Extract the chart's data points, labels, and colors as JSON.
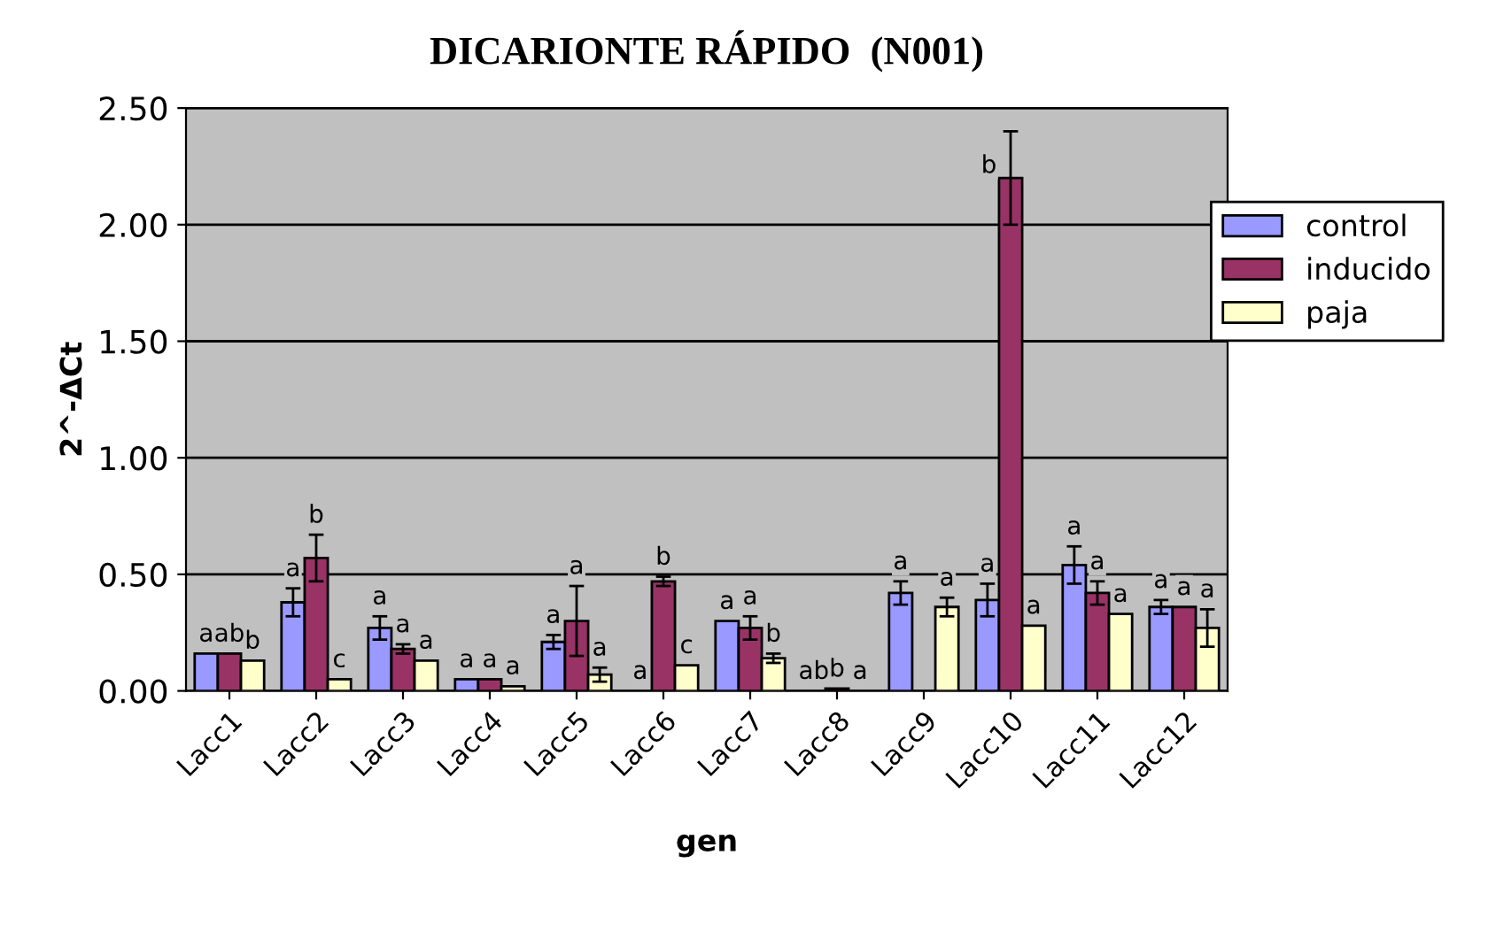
{
  "chart_data": {
    "type": "bar",
    "title": "DICARIONTE RÁPIDO  (N001)",
    "xlabel": "gen",
    "ylabel": "2^-ΔCt",
    "categories": [
      "Lacc1",
      "Lacc2",
      "Lacc3",
      "Lacc4",
      "Lacc5",
      "Lacc6",
      "Lacc7",
      "Lacc8",
      "Lacc9",
      "Lacc10",
      "Lacc11",
      "Lacc12"
    ],
    "series": [
      {
        "name": "control",
        "color": "#9999ff",
        "values": [
          0.16,
          0.38,
          0.27,
          0.05,
          0.21,
          null,
          0.3,
          null,
          0.42,
          0.39,
          0.54,
          0.36
        ],
        "errors": [
          null,
          0.06,
          0.05,
          null,
          0.03,
          null,
          null,
          null,
          0.05,
          0.07,
          0.08,
          0.03
        ],
        "value_labels": [
          "a",
          "a",
          "a",
          "a",
          "a",
          "a",
          "a",
          "ab",
          "a",
          "a",
          "a",
          "a"
        ]
      },
      {
        "name": "inducido",
        "color": "#993366",
        "values": [
          0.16,
          0.57,
          0.18,
          0.05,
          0.3,
          0.47,
          0.27,
          0.01,
          null,
          2.2,
          0.42,
          0.36
        ],
        "errors": [
          null,
          0.1,
          0.02,
          null,
          0.15,
          0.02,
          0.05,
          null,
          null,
          0.2,
          0.05,
          null
        ],
        "value_labels": [
          "ab",
          "b",
          "a",
          "a",
          "a",
          "b",
          "a",
          "b",
          null,
          "b",
          "a",
          "a"
        ]
      },
      {
        "name": "paja",
        "color": "#ffffcc",
        "values": [
          0.13,
          0.05,
          0.13,
          0.02,
          0.07,
          0.11,
          0.14,
          null,
          0.36,
          0.28,
          0.33,
          0.27
        ],
        "errors": [
          null,
          null,
          null,
          null,
          0.03,
          null,
          0.02,
          null,
          0.04,
          null,
          null,
          0.08
        ],
        "value_labels": [
          "b",
          "c",
          "a",
          "a",
          "a",
          "c",
          "b",
          "a",
          "a",
          "a",
          "a",
          "a"
        ]
      }
    ],
    "ylim": [
      0,
      2.5
    ],
    "yticks": [
      {
        "value": 0,
        "label": "0.00"
      },
      {
        "value": 0.5,
        "label": "0.50"
      },
      {
        "value": 1.0,
        "label": "1.00"
      },
      {
        "value": 1.5,
        "label": "1.50"
      },
      {
        "value": 2.0,
        "label": "2.00"
      },
      {
        "value": 2.5,
        "label": "2.50"
      }
    ],
    "grid": "y",
    "legend": "right"
  }
}
